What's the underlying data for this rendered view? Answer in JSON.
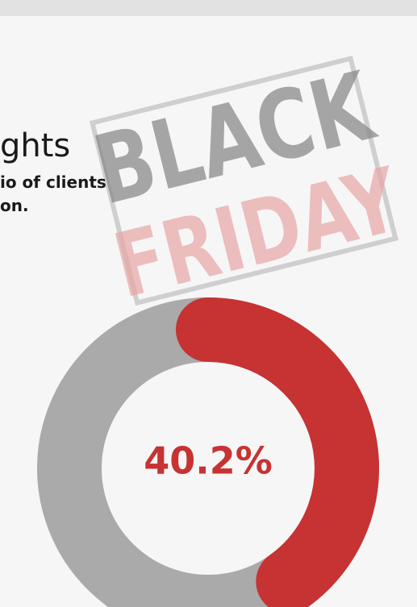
{
  "heading": "ghts",
  "description": [
    "io of clients",
    "on."
  ],
  "stamp": {
    "top": "BLACK",
    "bottom": "FRIDAY"
  },
  "donut": {
    "value": 40.2,
    "value_label": "40.2%",
    "color": "#c73232",
    "track_color": "#aaaaaa"
  }
}
